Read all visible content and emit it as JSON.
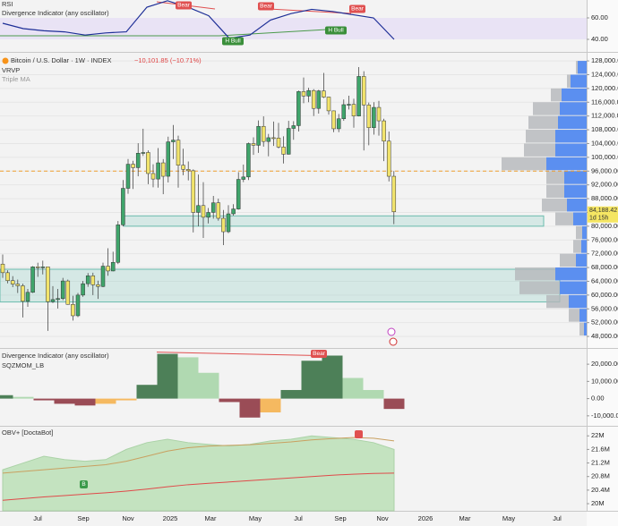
{
  "rsi_panel": {
    "label": "RSI",
    "indicator": "Divergence Indicator (any oscillator)",
    "ylim": [
      28.3,
      76.7
    ],
    "yticks": [
      {
        "value": 60,
        "label": "60.00"
      },
      {
        "value": 40,
        "label": "40.00"
      }
    ],
    "values": [
      55,
      50,
      48,
      47,
      44,
      46,
      47,
      70,
      76,
      70,
      62,
      41,
      44,
      58,
      64,
      68,
      66,
      63,
      60,
      40
    ],
    "color": "#1e2f97",
    "signals": [
      "Bear",
      "Bear",
      "Bear",
      "H Bull",
      "H Bull"
    ]
  },
  "main_panel": {
    "symbol": "Bitcoin / U.S. Dollar · 1W · INDEX",
    "change": "−10,101.85 (−10.71%)",
    "overlay": "VRVP",
    "overlay2": "Triple MA",
    "ylim": [
      44900,
      130100
    ],
    "yticks": [
      {
        "value": 128000,
        "label": "128,000.00"
      },
      {
        "value": 124000,
        "label": "124,000.00"
      },
      {
        "value": 120000,
        "label": "120,000.00"
      },
      {
        "value": 116000,
        "label": "116,000.00"
      },
      {
        "value": 112000,
        "label": "112,000.00"
      },
      {
        "value": 108000,
        "label": "108,000.00"
      },
      {
        "value": 104000,
        "label": "104,000.00"
      },
      {
        "value": 100000,
        "label": "100,000.00"
      },
      {
        "value": 96000,
        "label": "96,000.00"
      },
      {
        "value": 92000,
        "label": "92,000.00"
      },
      {
        "value": 88000,
        "label": "88,000.00"
      },
      {
        "value": 84000,
        "label": "84,000.00"
      },
      {
        "value": 80000,
        "label": "80,000.00"
      },
      {
        "value": 76000,
        "label": "76,000.00"
      },
      {
        "value": 72000,
        "label": "72,000.00"
      },
      {
        "value": 68000,
        "label": "68,000.00"
      },
      {
        "value": 64000,
        "label": "64,000.00"
      },
      {
        "value": 60000,
        "label": "60,000.00"
      },
      {
        "value": 56000,
        "label": "56,000.00"
      },
      {
        "value": 52000,
        "label": "52,000.00"
      },
      {
        "value": 48000,
        "label": "48,000.00"
      }
    ],
    "up_color": "#3fa56b",
    "down_color": "#f2e46c",
    "candles": [
      [
        69000,
        71800,
        65000,
        66500
      ],
      [
        66500,
        67200,
        63400,
        64200
      ],
      [
        64200,
        65500,
        62300,
        63200
      ],
      [
        63200,
        64500,
        60600,
        62700
      ],
      [
        62700,
        63300,
        53500,
        58200
      ],
      [
        58200,
        61800,
        56600,
        60800
      ],
      [
        60800,
        68400,
        60600,
        68200
      ],
      [
        68200,
        69400,
        65300,
        68000
      ],
      [
        68000,
        70000,
        66000,
        68200
      ],
      [
        68200,
        68200,
        49600,
        58100
      ],
      [
        58100,
        62600,
        57700,
        58700
      ],
      [
        58700,
        61800,
        56100,
        59000
      ],
      [
        59000,
        65000,
        58500,
        64100
      ],
      [
        64100,
        64500,
        57200,
        57300
      ],
      [
        57300,
        59800,
        52600,
        54000
      ],
      [
        54000,
        60600,
        53600,
        60000
      ],
      [
        60000,
        64100,
        59500,
        63300
      ],
      [
        63300,
        66400,
        62400,
        65600
      ],
      [
        65600,
        66500,
        60000,
        63000
      ],
      [
        63000,
        64200,
        58900,
        62500
      ],
      [
        62500,
        69400,
        62300,
        68400
      ],
      [
        68400,
        73600,
        65600,
        67000
      ],
      [
        67000,
        72600,
        66900,
        69500
      ],
      [
        69500,
        81500,
        69000,
        80400
      ],
      [
        80400,
        93400,
        80000,
        91000
      ],
      [
        91000,
        99500,
        89400,
        98000
      ],
      [
        98000,
        99000,
        90800,
        97000
      ],
      [
        97000,
        104100,
        94500,
        101200
      ],
      [
        101200,
        108300,
        100400,
        101400
      ],
      [
        101400,
        102000,
        92200,
        95300
      ],
      [
        95300,
        98000,
        91300,
        93700
      ],
      [
        93700,
        102700,
        91200,
        98400
      ],
      [
        98400,
        99500,
        89300,
        94500
      ],
      [
        94500,
        106000,
        92700,
        104500
      ],
      [
        104500,
        109400,
        99500,
        105000
      ],
      [
        105000,
        106300,
        91200,
        97700
      ],
      [
        97700,
        102500,
        94800,
        96500
      ],
      [
        96500,
        98800,
        93300,
        96100
      ],
      [
        96100,
        96500,
        78200,
        84000
      ],
      [
        84000,
        95000,
        80000,
        86000
      ],
      [
        86000,
        92800,
        76600,
        82600
      ],
      [
        82600,
        85300,
        80800,
        84000
      ],
      [
        84000,
        88800,
        82200,
        86800
      ],
      [
        86800,
        88000,
        81600,
        82300
      ],
      [
        82300,
        84700,
        74500,
        78400
      ],
      [
        78400,
        86100,
        78000,
        83600
      ],
      [
        83600,
        86400,
        83100,
        85000
      ],
      [
        85000,
        95700,
        84800,
        93600
      ],
      [
        93600,
        97900,
        92800,
        94300
      ],
      [
        94300,
        104300,
        93400,
        104000
      ],
      [
        104000,
        105800,
        100700,
        103500
      ],
      [
        103500,
        110700,
        101300,
        109000
      ],
      [
        109000,
        111900,
        103100,
        104600
      ],
      [
        104600,
        106800,
        100300,
        105700
      ],
      [
        105700,
        110400,
        103300,
        105600
      ],
      [
        105600,
        110000,
        102600,
        103000
      ],
      [
        103000,
        106100,
        98200,
        100900
      ],
      [
        100900,
        110600,
        100800,
        108400
      ],
      [
        108400,
        110500,
        105100,
        109200
      ],
      [
        109200,
        119400,
        107500,
        119100
      ],
      [
        119100,
        123200,
        115700,
        117800
      ],
      [
        117800,
        120200,
        116000,
        119400
      ],
      [
        119400,
        119800,
        112000,
        114200
      ],
      [
        114200,
        119600,
        112700,
        119300
      ],
      [
        119300,
        124500,
        117200,
        117500
      ],
      [
        117500,
        117600,
        112400,
        113500
      ],
      [
        113500,
        113600,
        107300,
        108300
      ],
      [
        108300,
        112600,
        107300,
        111200
      ],
      [
        111200,
        116800,
        110600,
        115300
      ],
      [
        115300,
        117900,
        113900,
        115400
      ],
      [
        115400,
        117000,
        108600,
        112000
      ],
      [
        112000,
        126200,
        111900,
        123500
      ],
      [
        123500,
        125000,
        102000,
        115200
      ],
      [
        115200,
        115900,
        103500,
        108600
      ],
      [
        108600,
        116000,
        106600,
        114500
      ],
      [
        114500,
        116400,
        106300,
        110600
      ],
      [
        110600,
        111200,
        98900,
        104700
      ],
      [
        104700,
        107500,
        93000,
        94500
      ],
      [
        94500,
        96000,
        80600,
        84188.42
      ]
    ],
    "last_price": {
      "value": 84188.42,
      "label": "84,188.42"
    },
    "countdown": "1d 15h",
    "zones": [
      [
        80000,
        83000
      ],
      [
        58000,
        67500
      ]
    ],
    "level": 96000,
    "volume_profile": {
      "price_levels": [
        48000,
        52000,
        56000,
        60000,
        64000,
        68000,
        72000,
        76000,
        80000,
        84000,
        88000,
        92000,
        96000,
        100000,
        104000,
        108000,
        112000,
        116000,
        120000,
        124000
      ],
      "volume": [
        8,
        20,
        45,
        75,
        80,
        30,
        15,
        12,
        35,
        50,
        45,
        45,
        95,
        70,
        68,
        65,
        60,
        40,
        22,
        12
      ],
      "up_volume": [
        3,
        8,
        20,
        30,
        35,
        12,
        6,
        5,
        15,
        22,
        25,
        25,
        45,
        35,
        35,
        32,
        30,
        28,
        18,
        10
      ],
      "color": "#b4b6ba",
      "up_color": "#5b8ff0"
    }
  },
  "momentum_panel": {
    "indicator": "Divergence Indicator (any oscillator)",
    "label": "SQZMOM_LB",
    "signal": "Bear",
    "ylim": [
      -15800,
      28900
    ],
    "yticks": [
      {
        "value": 20000,
        "label": "20,000.00"
      },
      {
        "value": 10000,
        "label": "10,000.00"
      },
      {
        "value": 0,
        "label": "0.00"
      },
      {
        "value": -10000,
        "label": "-10,000.00"
      }
    ],
    "values": [
      2000,
      1000,
      -1000,
      -3000,
      -4000,
      -3000,
      -1000,
      8000,
      26000,
      24000,
      15000,
      -2000,
      -11000,
      -8000,
      5000,
      22000,
      25000,
      12000,
      5000,
      -6000
    ]
  },
  "obv_panel": {
    "label": "OBV+ [DoctaBot]",
    "ylim": [
      19.79,
      22.27
    ],
    "yticks": [
      {
        "value": 22,
        "label": "22M"
      },
      {
        "value": 21.6,
        "label": "21.6M"
      },
      {
        "value": 21.2,
        "label": "21.2M"
      },
      {
        "value": 20.8,
        "label": "20.8M"
      },
      {
        "value": 20.4,
        "label": "20.4M"
      },
      {
        "value": 20,
        "label": "20M"
      }
    ],
    "values": [
      21.0,
      21.2,
      21.4,
      21.3,
      21.25,
      21.3,
      21.6,
      21.8,
      21.9,
      21.8,
      21.75,
      21.7,
      21.75,
      21.85,
      21.9,
      22.0,
      21.95,
      21.9,
      21.8,
      21.6
    ],
    "fast_ma": [
      20.9,
      20.95,
      21.0,
      21.05,
      21.1,
      21.15,
      21.25,
      21.4,
      21.55,
      21.65,
      21.7,
      21.72,
      21.74,
      21.78,
      21.82,
      21.88,
      21.92,
      21.95,
      21.93,
      21.85
    ],
    "slow_ma": [
      20.1,
      20.15,
      20.2,
      20.24,
      20.28,
      20.32,
      20.37,
      20.43,
      20.5,
      20.56,
      20.6,
      20.64,
      20.68,
      20.72,
      20.76,
      20.8,
      20.84,
      20.87,
      20.89,
      20.9
    ],
    "signal": "B"
  },
  "x_axis": {
    "labels": [
      "Jul",
      "Sep",
      "Nov",
      "2025",
      "Mar",
      "May",
      "Jul",
      "Sep",
      "Nov",
      "2026",
      "Mar",
      "May",
      "Jul"
    ]
  }
}
